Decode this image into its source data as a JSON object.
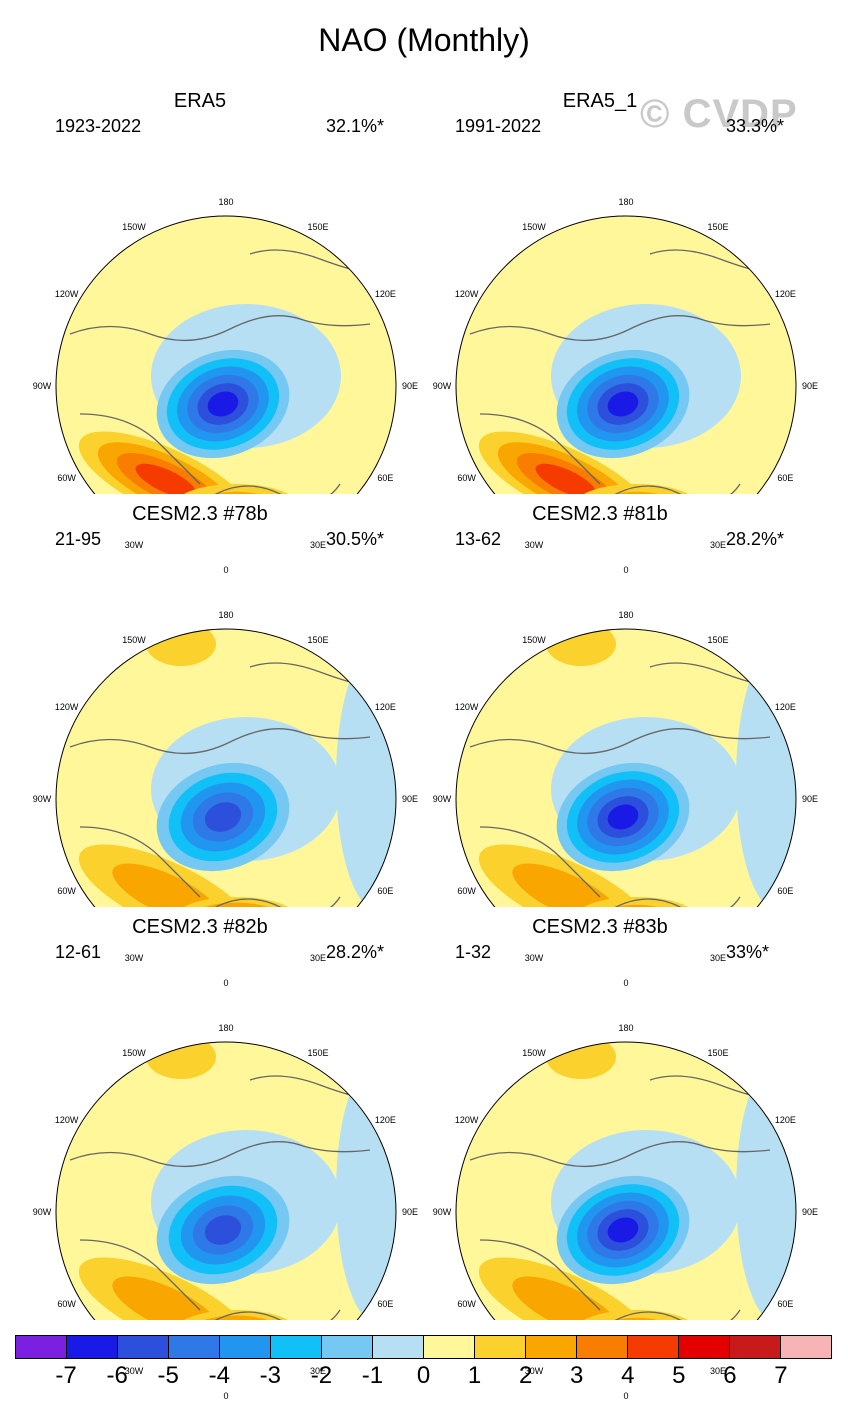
{
  "figure_title": "NAO (Monthly)",
  "watermark": "© CVDP",
  "longitude_labels": [
    "180",
    "150E",
    "120E",
    "90E",
    "60E",
    "30E",
    "0",
    "30W",
    "60W",
    "90W",
    "120W",
    "150W"
  ],
  "panels": [
    {
      "title": "ERA5",
      "period": "1923-2022",
      "variance_explained": "32.1%*",
      "pattern": {
        "neg_peak": -6,
        "atl_peak": 4,
        "med_peak": 2,
        "pac_peak": 0
      }
    },
    {
      "title": "ERA5_1",
      "period": "1991-2022",
      "variance_explained": "33.3%*",
      "pattern": {
        "neg_peak": -6,
        "atl_peak": 4,
        "med_peak": 2,
        "pac_peak": 0
      }
    },
    {
      "title": "CESM2.3 #78b",
      "period": "21-95",
      "variance_explained": "30.5%*",
      "pattern": {
        "neg_peak": -5,
        "atl_peak": 2,
        "med_peak": 3,
        "pac_peak": 1
      }
    },
    {
      "title": "CESM2.3 #81b",
      "period": "13-62",
      "variance_explained": "28.2%*",
      "pattern": {
        "neg_peak": -6,
        "atl_peak": 2,
        "med_peak": 2,
        "pac_peak": 1
      }
    },
    {
      "title": "CESM2.3 #82b",
      "period": "12-61",
      "variance_explained": "28.2%*",
      "pattern": {
        "neg_peak": -5,
        "atl_peak": 2,
        "med_peak": 3,
        "pac_peak": 1
      }
    },
    {
      "title": "CESM2.3 #83b",
      "period": "1-32",
      "variance_explained": "33%*",
      "pattern": {
        "neg_peak": -6,
        "atl_peak": 2,
        "med_peak": 2,
        "pac_peak": 1
      }
    }
  ],
  "colorbar": {
    "ticks": [
      "-7",
      "-6",
      "-5",
      "-4",
      "-3",
      "-2",
      "-1",
      "0",
      "1",
      "2",
      "3",
      "4",
      "5",
      "6",
      "7"
    ],
    "colors": [
      "#7b1fe0",
      "#1a1ae6",
      "#2c4fdc",
      "#2f78e8",
      "#2196f0",
      "#12c0f8",
      "#74c8f2",
      "#b6dff3",
      "#fff799",
      "#fbd22d",
      "#f9a600",
      "#f97d00",
      "#f63b00",
      "#e40000",
      "#c81a1a",
      "#f7b4b4"
    ]
  }
}
